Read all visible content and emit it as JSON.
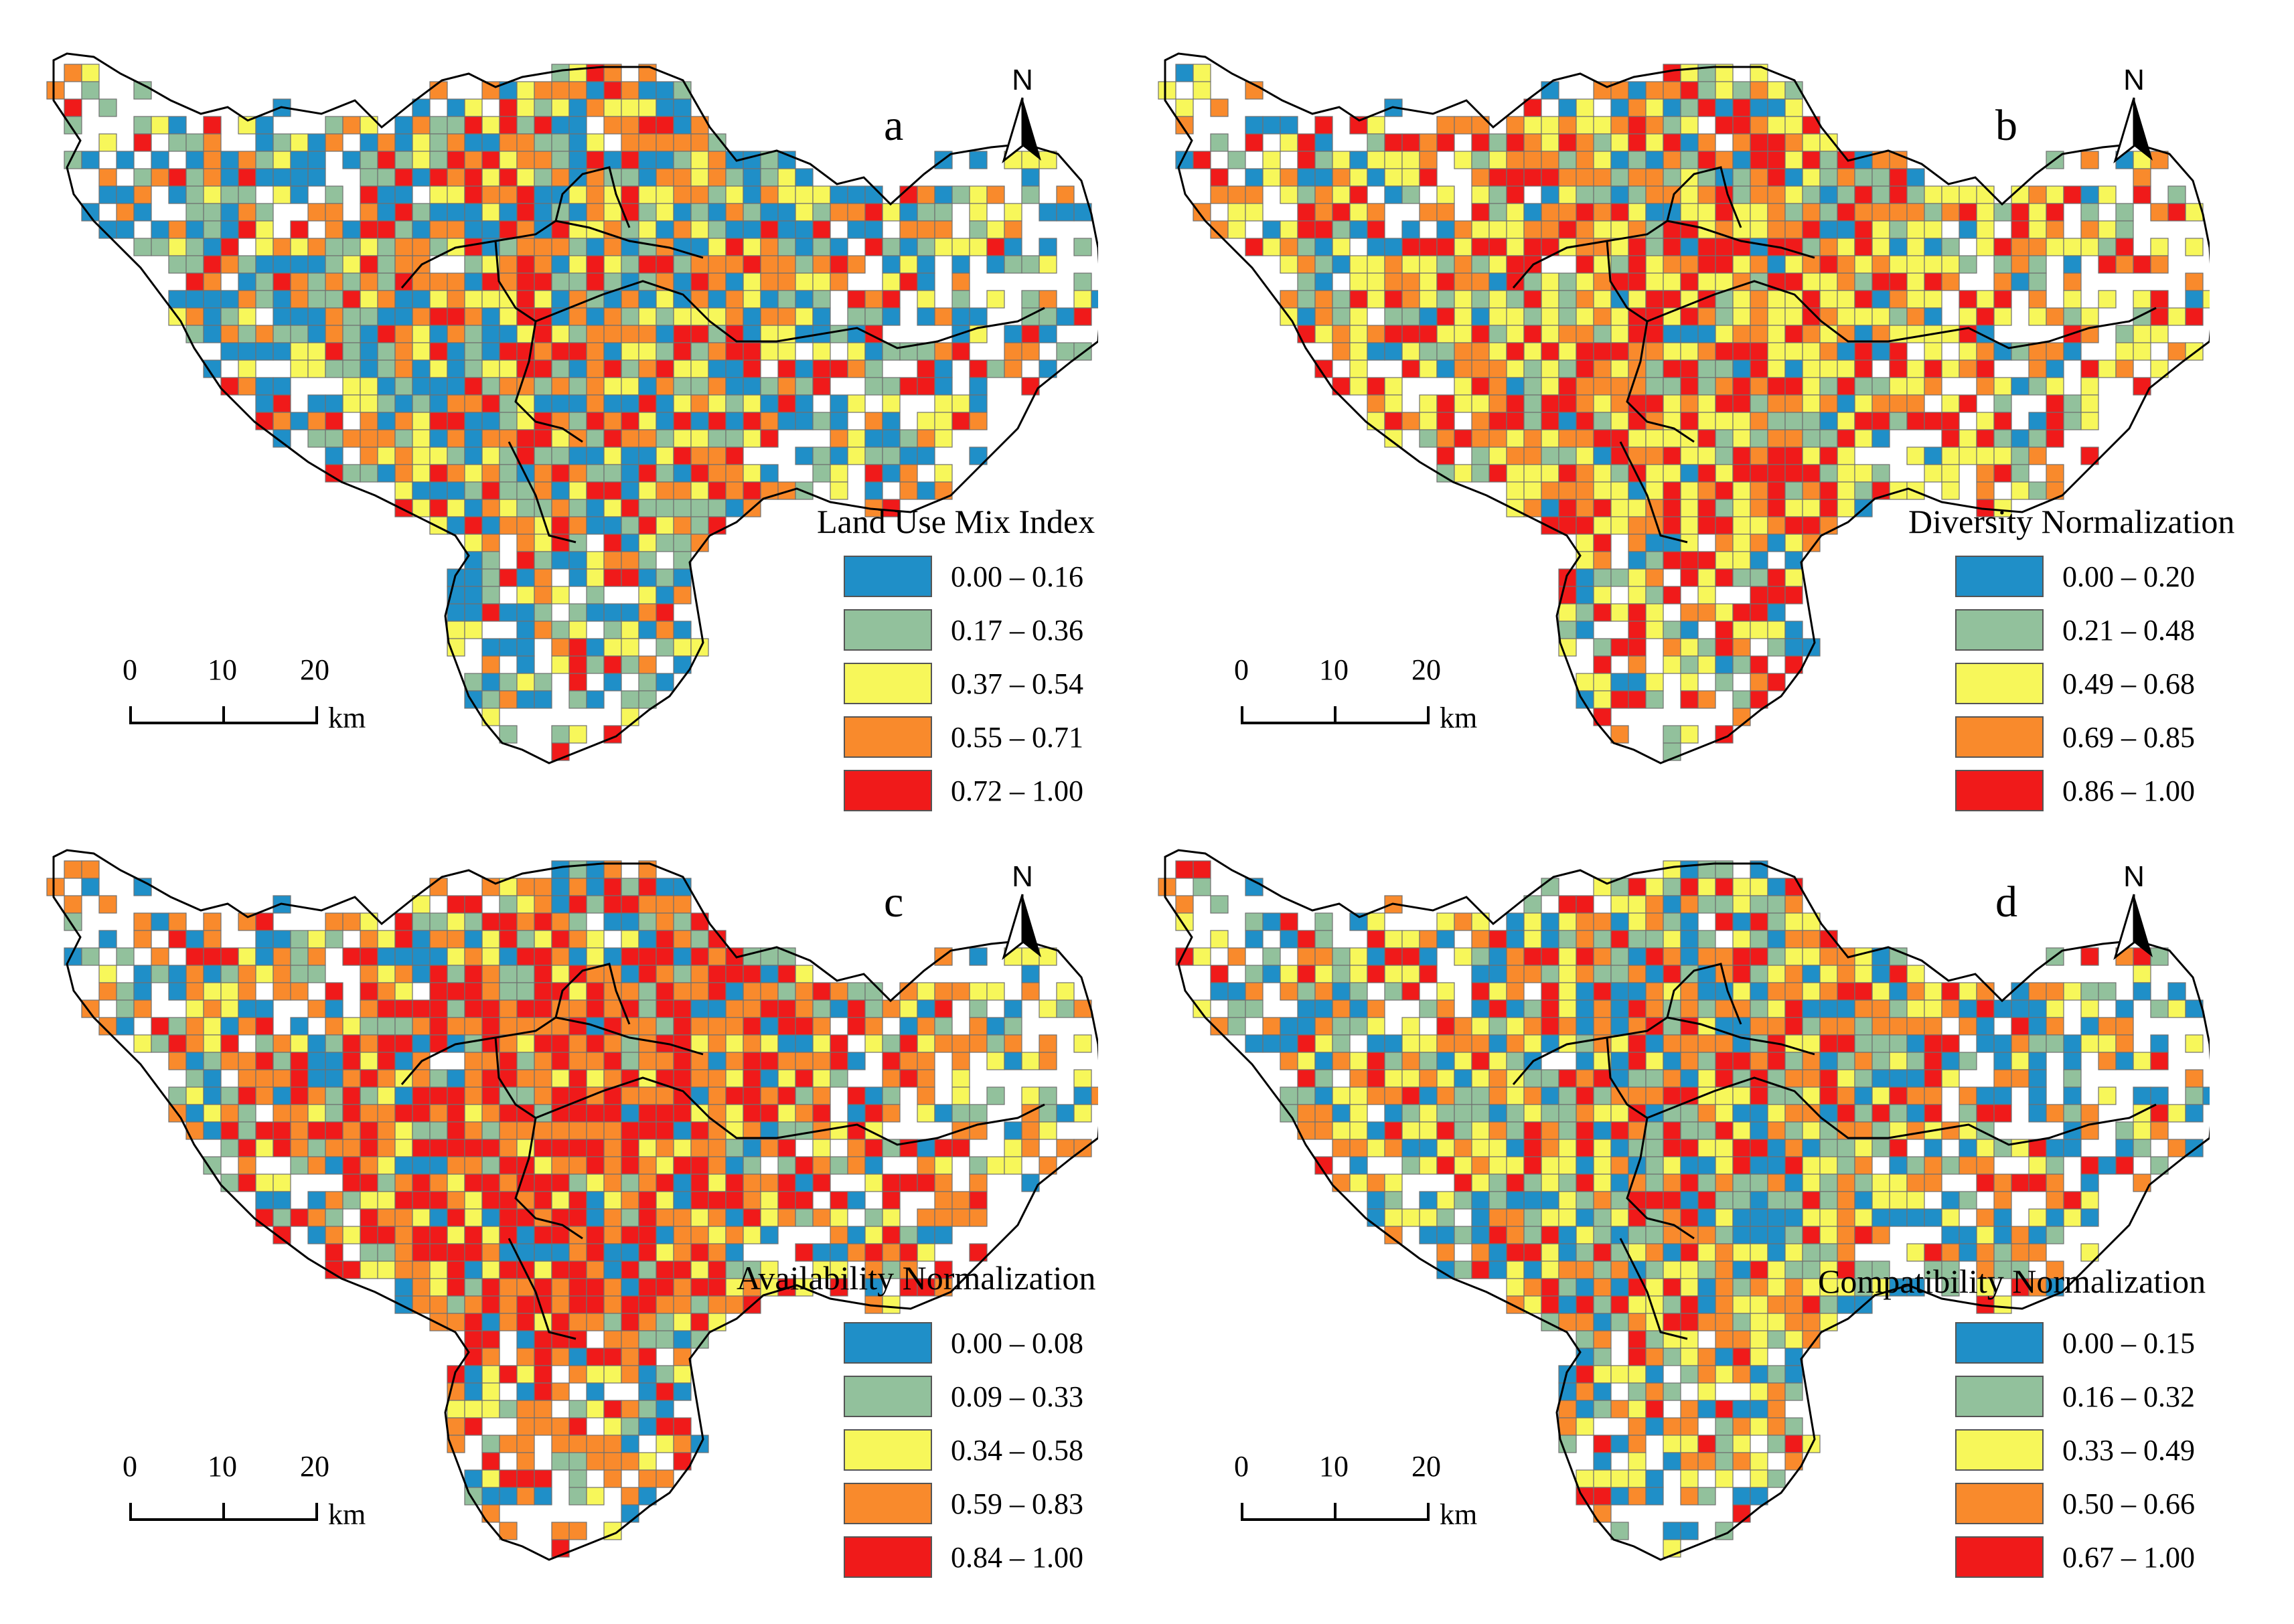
{
  "palette": [
    "#1f8fc8",
    "#92c19c",
    "#f7f75a",
    "#f98a2c",
    "#f01a1a"
  ],
  "north_label": "N",
  "scale": {
    "ticks": [
      "0",
      "10",
      "20"
    ],
    "unit": "km"
  },
  "panels": [
    {
      "letter": "a",
      "legend_title": "Land Use Mix Index",
      "classes": [
        "0.00 – 0.16",
        "0.17 – 0.36",
        "0.37 – 0.54",
        "0.55 – 0.71",
        "0.72 – 1.00"
      ],
      "tendency": "mixed-high"
    },
    {
      "letter": "b",
      "legend_title": "Diversity Normalization",
      "classes": [
        "0.00 – 0.20",
        "0.21 – 0.48",
        "0.49 – 0.68",
        "0.69 – 0.85",
        "0.86 – 1.00"
      ],
      "tendency": "yellow-red"
    },
    {
      "letter": "c",
      "legend_title": "Availability Normalization",
      "classes": [
        "0.00 – 0.08",
        "0.09 – 0.33",
        "0.34 – 0.58",
        "0.59 – 0.83",
        "0.84 – 1.00"
      ],
      "tendency": "core-red"
    },
    {
      "letter": "d",
      "legend_title": "Compatibility Normalization",
      "classes": [
        "0.00 – 0.15",
        "0.16 – 0.32",
        "0.33 – 0.49",
        "0.50 – 0.66",
        "0.67 – 1.00"
      ],
      "tendency": "mixed-blue"
    }
  ]
}
